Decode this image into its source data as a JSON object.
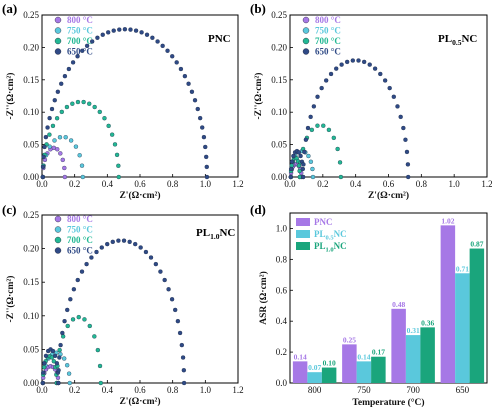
{
  "colors": {
    "800": "#a678e6",
    "750": "#5ac8dc",
    "700": "#22b894",
    "650": "#2f4a86",
    "PNC": "#a678e6",
    "PL0.5NC": "#5ac8dc",
    "PL1.0NC": "#1aa57c"
  },
  "panels": [
    {
      "id": "a",
      "label": "(a)",
      "title": "PNC",
      "title_sub": ""
    },
    {
      "id": "b",
      "label": "(b)",
      "title": "PL",
      "title_sub": "0.5",
      "title_suffix": "NC"
    },
    {
      "id": "c",
      "label": "(c)",
      "title": "PL",
      "title_sub": "1.0",
      "title_suffix": "NC"
    },
    {
      "id": "d",
      "label": "(d)"
    }
  ],
  "eis_axes": {
    "xlabel": "Z'(Ω·cm²)",
    "ylabel": "-Z''(Ω·cm²)",
    "xticks": [
      "0.0",
      "0.2",
      "0.4",
      "0.6",
      "0.8",
      "1.0",
      "1.2"
    ],
    "yticks": [
      "0.00",
      "0.05",
      "0.10",
      "0.15",
      "0.20",
      "0.25"
    ]
  },
  "legend_labels": [
    "800 °C",
    "750 °C",
    "700 °C",
    "650 °C"
  ],
  "chart_data": [
    {
      "panel": "a",
      "type": "scatter",
      "title": "PNC",
      "xlabel": "Z'(Ω·cm²)",
      "ylabel": "-Z''(Ω·cm²)",
      "xlim": [
        0,
        1.2
      ],
      "ylim": [
        0,
        0.25
      ],
      "series": [
        {
          "name": "800 °C",
          "arcs": [
            {
              "start": 0.005,
              "end": 0.14,
              "height": 0.045
            }
          ]
        },
        {
          "name": "750 °C",
          "arcs": [
            {
              "start": 0.005,
              "end": 0.25,
              "height": 0.062
            }
          ]
        },
        {
          "name": "700 °C",
          "arcs": [
            {
              "start": 0.005,
              "end": 0.47,
              "height": 0.116
            }
          ]
        },
        {
          "name": "650 °C",
          "arcs": [
            {
              "start": 0.005,
              "end": 1.01,
              "height": 0.228
            }
          ]
        }
      ]
    },
    {
      "panel": "b",
      "type": "scatter",
      "title": "PL0.5NC",
      "xlabel": "Z'(Ω·cm²)",
      "ylabel": "-Z''(Ω·cm²)",
      "xlim": [
        0,
        1.2
      ],
      "ylim": [
        0,
        0.25
      ],
      "series": [
        {
          "name": "800 °C",
          "arcs": [
            {
              "start": 0.005,
              "end": 0.07,
              "height": 0.02
            }
          ]
        },
        {
          "name": "750 °C",
          "arcs": [
            {
              "start": 0.005,
              "end": 0.14,
              "height": 0.04
            }
          ]
        },
        {
          "name": "700 °C",
          "arcs": [
            {
              "start": 0.005,
              "end": 0.06,
              "height": 0.03
            },
            {
              "start": 0.06,
              "end": 0.31,
              "height": 0.08
            }
          ]
        },
        {
          "name": "650 °C",
          "arcs": [
            {
              "start": 0.005,
              "end": 0.08,
              "height": 0.04
            },
            {
              "start": 0.08,
              "end": 0.72,
              "height": 0.18
            }
          ]
        }
      ]
    },
    {
      "panel": "c",
      "type": "scatter",
      "title": "PL1.0NC",
      "xlabel": "Z'(Ω·cm²)",
      "ylabel": "-Z''(Ω·cm²)",
      "xlim": [
        0,
        1.2
      ],
      "ylim": [
        0,
        0.25
      ],
      "series": [
        {
          "name": "800 °C",
          "arcs": [
            {
              "start": 0.005,
              "end": 0.1,
              "height": 0.025
            }
          ]
        },
        {
          "name": "750 °C",
          "arcs": [
            {
              "start": 0.005,
              "end": 0.17,
              "height": 0.045
            }
          ]
        },
        {
          "name": "700 °C",
          "arcs": [
            {
              "start": 0.005,
              "end": 0.09,
              "height": 0.04
            },
            {
              "start": 0.09,
              "end": 0.36,
              "height": 0.098
            }
          ]
        },
        {
          "name": "650 °C",
          "arcs": [
            {
              "start": 0.005,
              "end": 0.1,
              "height": 0.05
            },
            {
              "start": 0.1,
              "end": 0.87,
              "height": 0.212
            }
          ]
        }
      ]
    },
    {
      "panel": "d",
      "type": "bar",
      "xlabel": "Temperature (°C)",
      "ylabel": "ASR (Ω·cm²)",
      "categories": [
        "800",
        "750",
        "700",
        "650"
      ],
      "ylim": [
        0,
        1.1
      ],
      "yticks": [
        "0.0",
        "0.2",
        "0.4",
        "0.6",
        "0.8",
        "1.0"
      ],
      "series": [
        {
          "name": "PNC",
          "legend_main": "PNC",
          "legend_sub": "",
          "legend_suffix": "",
          "values": [
            0.14,
            0.25,
            0.48,
            1.02
          ],
          "labels": [
            "0.14",
            "0.25",
            "0.48",
            "1.02"
          ]
        },
        {
          "name": "PL0.5NC",
          "legend_main": "PL",
          "legend_sub": "0.5",
          "legend_suffix": "NC",
          "values": [
            0.07,
            0.14,
            0.31,
            0.71
          ],
          "labels": [
            "0.07",
            "0.14",
            "0.31",
            "0.71"
          ]
        },
        {
          "name": "PL1.0NC",
          "legend_main": "PL",
          "legend_sub": "1.0",
          "legend_suffix": "NC",
          "values": [
            0.1,
            0.17,
            0.36,
            0.87
          ],
          "labels": [
            "0.10",
            "0.17",
            "0.36",
            "0.87"
          ]
        }
      ]
    }
  ]
}
